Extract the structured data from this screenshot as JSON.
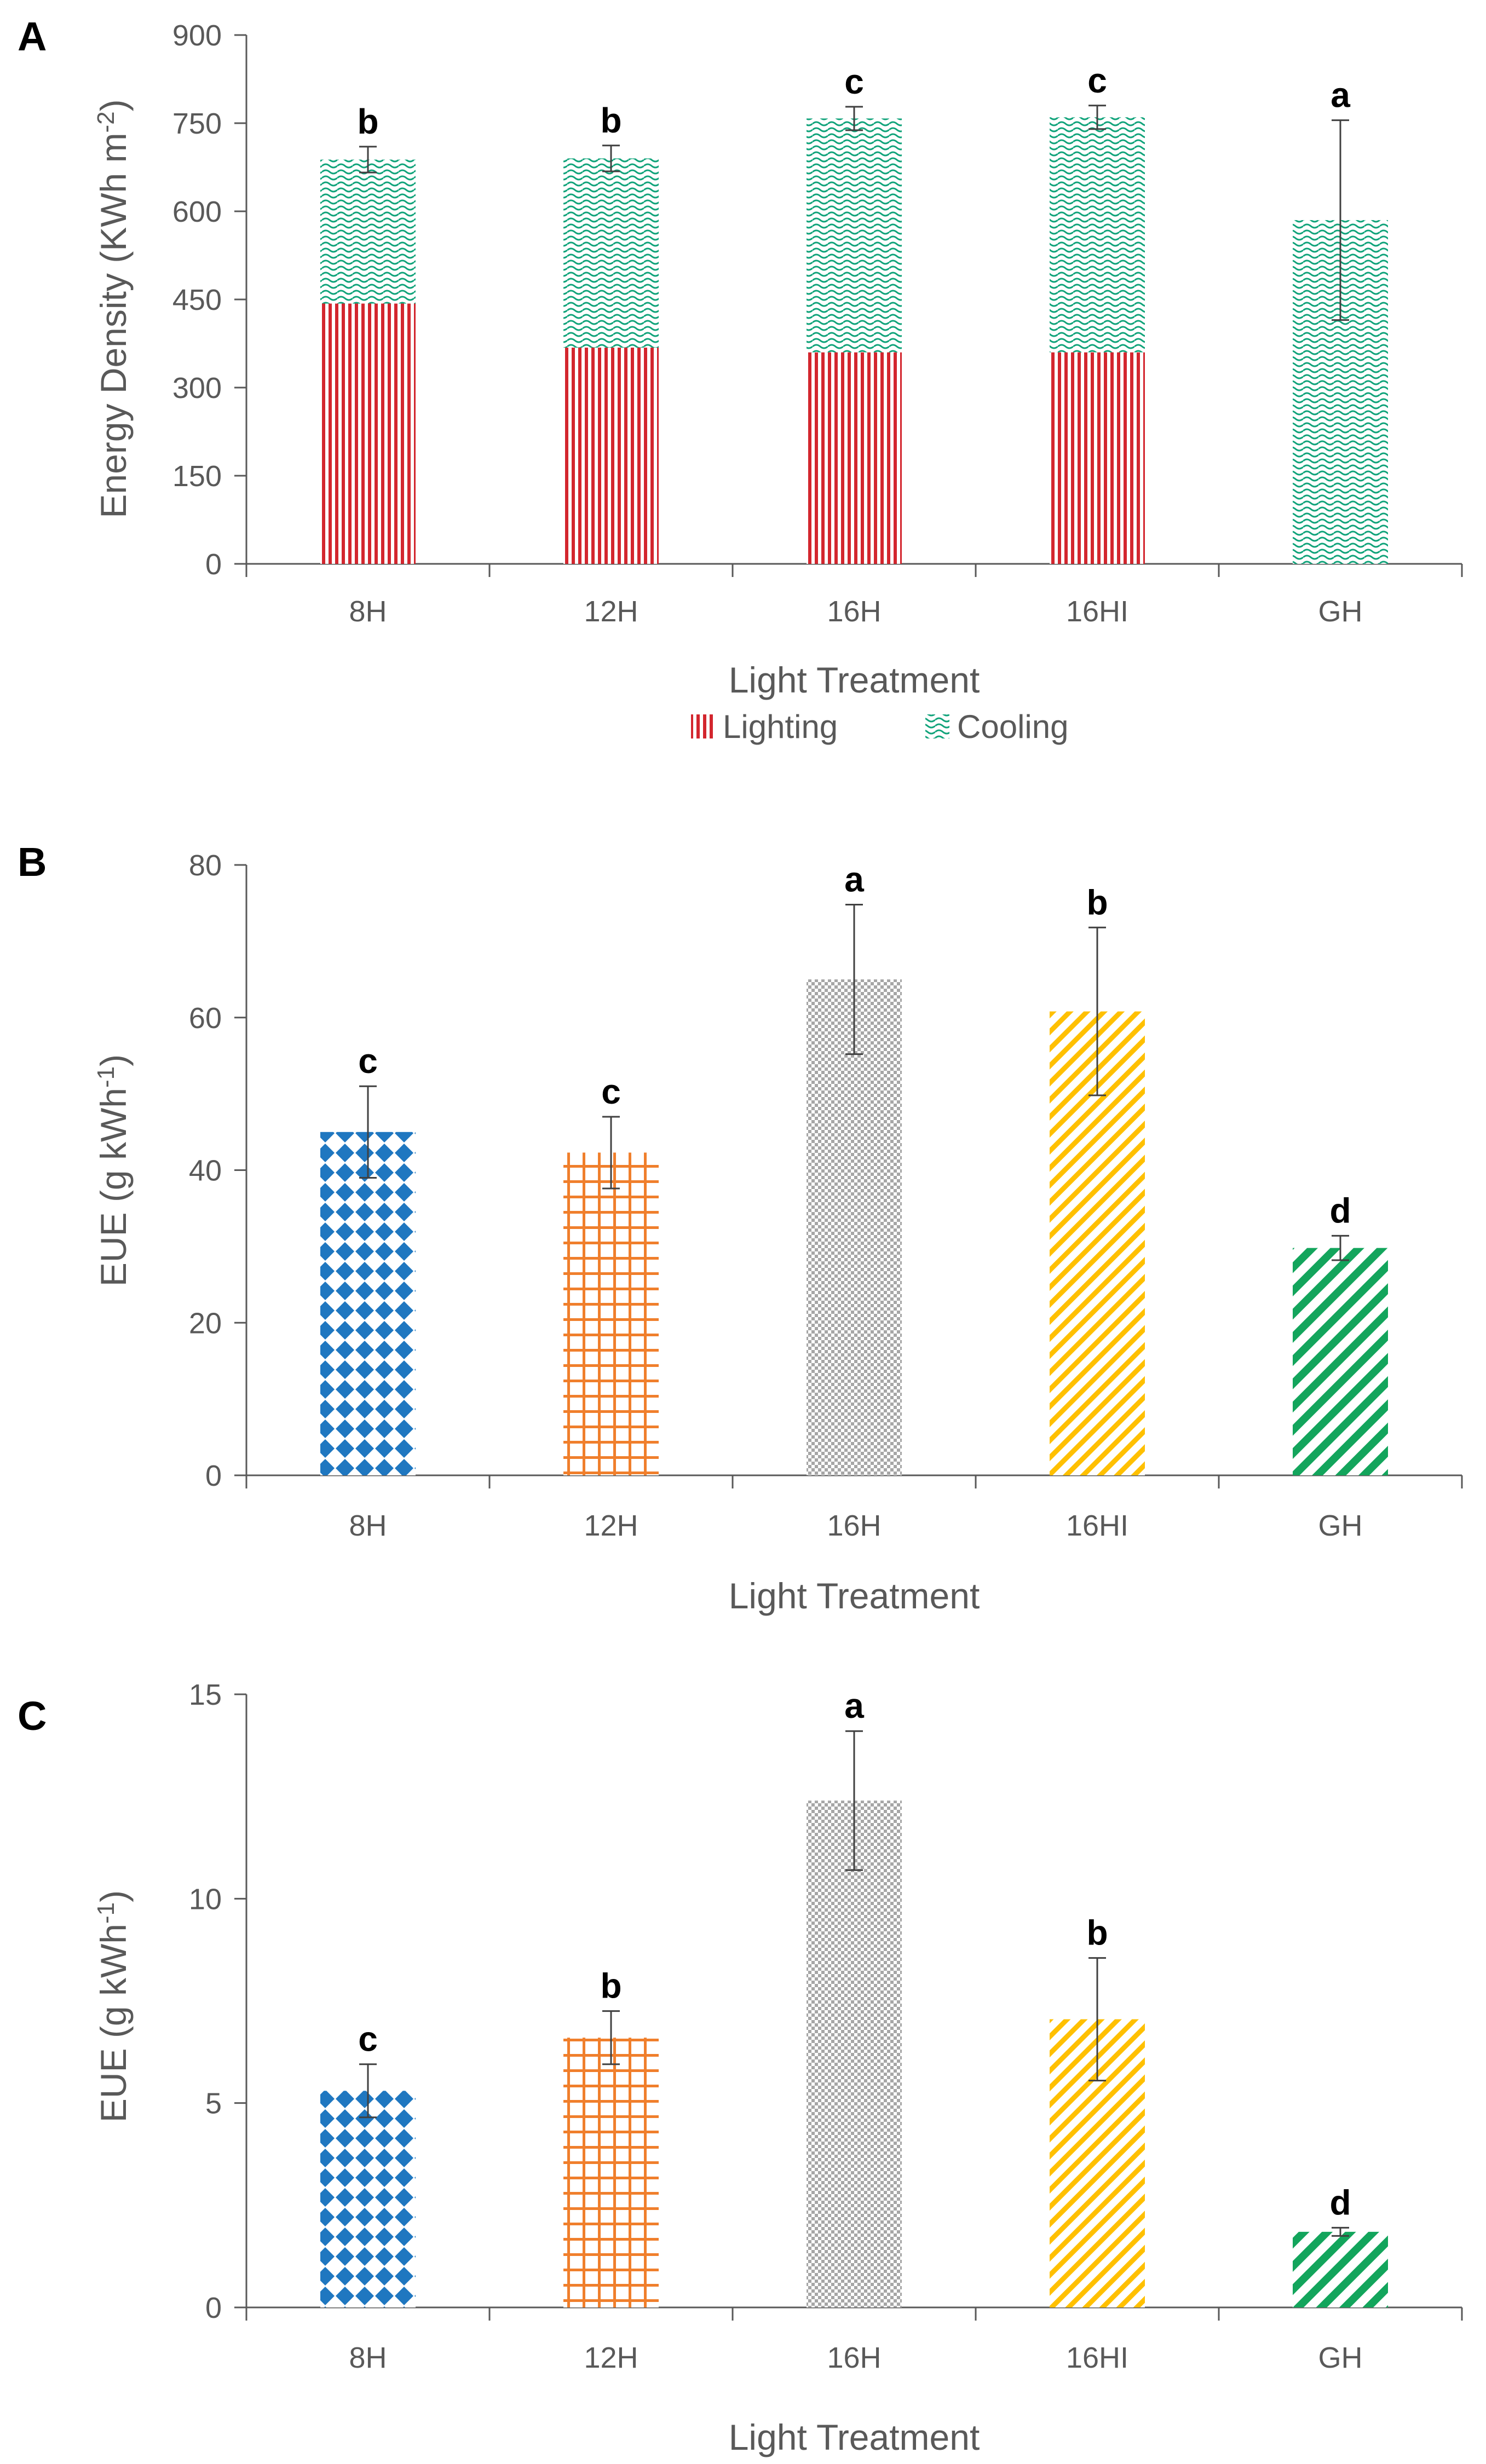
{
  "colors": {
    "lighting": "#d3262e",
    "cooling": "#10a37a",
    "blue": "#1f77c0",
    "orange": "#f07f2c",
    "gray": "#a6a6a6",
    "yellow": "#ffc000",
    "green": "#13a55c",
    "axis": "#595959"
  },
  "chart_data": [
    {
      "type": "bar",
      "stacked": true,
      "panel": "A",
      "title": "",
      "xlabel": "Light Treatment",
      "ylabel_main": "Energy Density (KWh m",
      "ylabel_sup": "-2",
      "ylabel_end": ")",
      "ylim": [
        0,
        900
      ],
      "yticks": [
        0,
        150,
        300,
        450,
        600,
        750,
        900
      ],
      "categories": [
        "8H",
        "12H",
        "16H",
        "16HI",
        "GH"
      ],
      "series": [
        {
          "name": "Lighting",
          "values": [
            443,
            368,
            360,
            360,
            0
          ],
          "pattern": "lighting"
        },
        {
          "name": "Cooling",
          "values": [
            245,
            322,
            398,
            400,
            585
          ],
          "pattern": "cooling"
        }
      ],
      "errors": [
        22,
        22,
        20,
        20,
        170
      ],
      "significance": [
        "b",
        "b",
        "c",
        "c",
        "a"
      ],
      "legend": [
        "Lighting",
        "Cooling"
      ]
    },
    {
      "type": "bar",
      "panel": "B",
      "title": "",
      "xlabel": "Light Treatment",
      "ylabel_main": "EUE (g kWh",
      "ylabel_sup": "-1",
      "ylabel_end": ")",
      "ylim": [
        0,
        80
      ],
      "yticks": [
        0,
        20,
        40,
        60,
        80
      ],
      "categories": [
        "8H",
        "12H",
        "16H",
        "16HI",
        "GH"
      ],
      "values": [
        45,
        42.3,
        65,
        60.8,
        29.8
      ],
      "errors": [
        6,
        4.7,
        9.8,
        11,
        1.6
      ],
      "significance": [
        "c",
        "c",
        "a",
        "b",
        "d"
      ],
      "patterns": [
        "blue",
        "orange",
        "gray",
        "yellow",
        "green"
      ]
    },
    {
      "type": "bar",
      "panel": "C",
      "title": "",
      "xlabel": "Light Treatment",
      "ylabel_main": "EUE (g kWh",
      "ylabel_sup": "-1",
      "ylabel_end": ")",
      "ylim": [
        0,
        15
      ],
      "yticks": [
        0,
        5,
        10,
        15
      ],
      "categories": [
        "8H",
        "12H",
        "16H",
        "16HI",
        "GH"
      ],
      "values": [
        5.3,
        6.6,
        12.4,
        7.05,
        1.85
      ],
      "errors": [
        0.65,
        0.65,
        1.7,
        1.5,
        0.1
      ],
      "significance": [
        "c",
        "b",
        "a",
        "b",
        "d"
      ],
      "patterns": [
        "blue",
        "orange",
        "gray",
        "yellow",
        "green"
      ]
    }
  ]
}
